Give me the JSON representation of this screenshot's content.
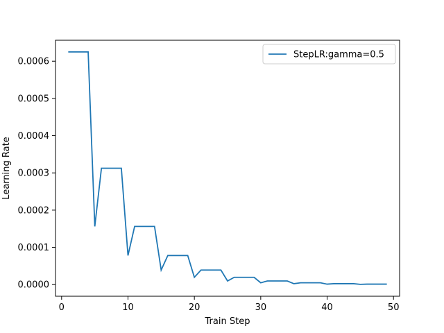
{
  "chart_data": {
    "type": "line",
    "title": "",
    "xlabel": "Train Step",
    "ylabel": "Learning Rate",
    "xlim": [
      -0.92,
      50.92
    ],
    "ylim": [
      -3.125e-05,
      0.0006563
    ],
    "xticks": [
      0,
      10,
      20,
      30,
      40,
      50
    ],
    "xtick_labels": [
      "0",
      "10",
      "20",
      "30",
      "40",
      "50"
    ],
    "yticks": [
      0,
      0.0001,
      0.0002,
      0.0003,
      0.0004,
      0.0005,
      0.0006
    ],
    "ytick_labels": [
      "0.0000",
      "0.0001",
      "0.0002",
      "0.0003",
      "0.0004",
      "0.0005",
      "0.0006"
    ],
    "grid": false,
    "legend_position": "top-right",
    "series": [
      {
        "name": "StepLR:gamma=0.5",
        "color": "#1f77b4",
        "x": [
          1,
          2,
          3,
          4,
          5,
          6,
          7,
          8,
          9,
          10,
          11,
          12,
          13,
          14,
          15,
          16,
          17,
          18,
          19,
          20,
          21,
          22,
          23,
          24,
          25,
          26,
          27,
          28,
          29,
          30,
          31,
          32,
          33,
          34,
          35,
          36,
          37,
          38,
          39,
          40,
          41,
          42,
          43,
          44,
          45,
          46,
          47,
          48,
          49
        ],
        "y": [
          0.000625,
          0.000625,
          0.000625,
          0.000625,
          0.00015625,
          0.0003125,
          0.0003125,
          0.0003125,
          0.0003125,
          7.8125e-05,
          0.00015625,
          0.00015625,
          0.00015625,
          0.00015625,
          3.90625e-05,
          7.8125e-05,
          7.8125e-05,
          7.8125e-05,
          7.8125e-05,
          1.95313e-05,
          3.90625e-05,
          3.90625e-05,
          3.90625e-05,
          3.90625e-05,
          9.7656e-06,
          1.95313e-05,
          1.95313e-05,
          1.95313e-05,
          1.95313e-05,
          4.8828e-06,
          9.7656e-06,
          9.7656e-06,
          9.7656e-06,
          9.7656e-06,
          2.4414e-06,
          4.8828e-06,
          4.8828e-06,
          4.8828e-06,
          4.8828e-06,
          1.2207e-06,
          2.4414e-06,
          2.4414e-06,
          2.4414e-06,
          2.4414e-06,
          6.104e-07,
          1.2207e-06,
          1.2207e-06,
          1.2207e-06,
          1.2207e-06
        ]
      }
    ]
  }
}
